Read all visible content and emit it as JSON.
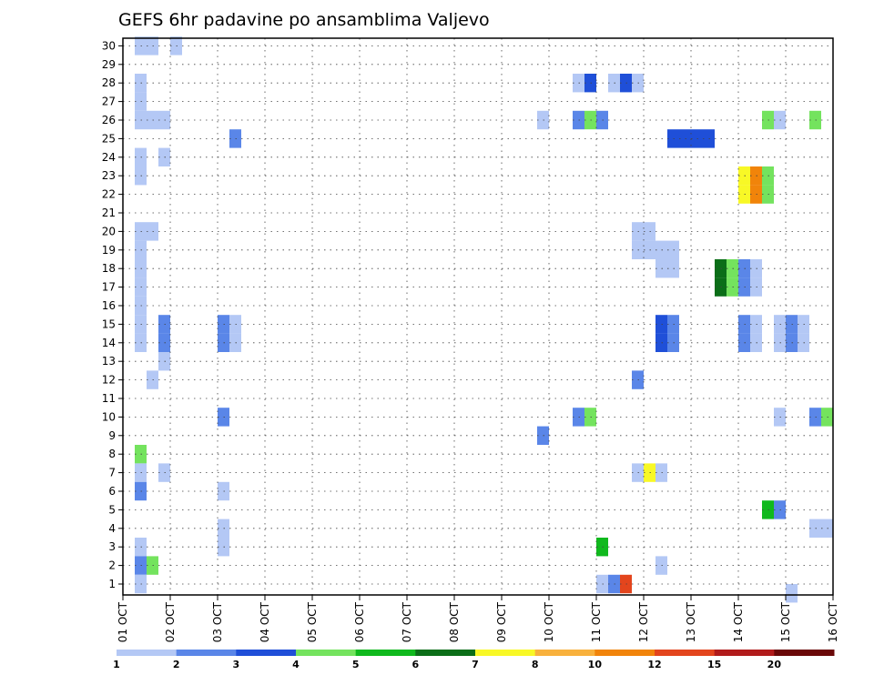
{
  "chart_data": {
    "type": "heatmap",
    "title": "GEFS 6hr padavine po ansamblima Valjevo",
    "xlabel": "",
    "ylabel": "",
    "x_tick_labels": [
      "01 OCT",
      "02 OCT",
      "03 OCT",
      "04 OCT",
      "05 OCT",
      "06 OCT",
      "07 OCT",
      "08 OCT",
      "09 OCT",
      "10 OCT",
      "11 OCT",
      "12 OCT",
      "13 OCT",
      "14 OCT",
      "15 OCT",
      "16 OCT"
    ],
    "y_tick_labels": [
      "1",
      "2",
      "3",
      "4",
      "5",
      "6",
      "7",
      "8",
      "9",
      "10",
      "11",
      "12",
      "13",
      "14",
      "15",
      "16",
      "17",
      "18",
      "19",
      "20",
      "21",
      "22",
      "23",
      "24",
      "25",
      "26",
      "27",
      "28",
      "29",
      "30"
    ],
    "x_range_days": [
      0,
      15
    ],
    "time_step_hours": 6,
    "grid": "dotted",
    "colorbar": {
      "labels": [
        "1",
        "2",
        "3",
        "4",
        "5",
        "6",
        "7",
        "8",
        "10",
        "12",
        "15",
        "20"
      ],
      "colors": [
        "#b4c8f5",
        "#5a86e8",
        "#1f4fd8",
        "#74e35e",
        "#10b91d",
        "#0b6e18",
        "#f8f826",
        "#f8b13d",
        "#f1840a",
        "#e3451d",
        "#b11b1b",
        "#6a0808"
      ]
    },
    "cells_legend": "each cell = [day offset from 01 OCT (6h steps), ensemble member, color class 1-12]",
    "cells": [
      [
        0.25,
        30,
        1
      ],
      [
        0.5,
        30,
        1
      ],
      [
        1.0,
        30,
        1
      ],
      [
        0.25,
        28,
        1
      ],
      [
        0.25,
        27,
        1
      ],
      [
        0.25,
        26,
        1
      ],
      [
        0.5,
        26,
        1
      ],
      [
        0.75,
        26,
        1
      ],
      [
        0.25,
        24,
        1
      ],
      [
        0.75,
        24,
        1
      ],
      [
        0.25,
        23,
        1
      ],
      [
        0.25,
        20,
        1
      ],
      [
        0.5,
        20,
        1
      ],
      [
        0.25,
        19,
        1
      ],
      [
        0.25,
        18,
        1
      ],
      [
        0.25,
        17,
        1
      ],
      [
        0.25,
        16,
        1
      ],
      [
        0.25,
        15,
        1
      ],
      [
        0.25,
        14,
        1
      ],
      [
        0.75,
        15,
        2
      ],
      [
        0.75,
        14,
        2
      ],
      [
        0.75,
        13,
        1
      ],
      [
        0.5,
        12,
        1
      ],
      [
        0.25,
        8,
        4
      ],
      [
        0.25,
        7,
        1
      ],
      [
        0.75,
        7,
        1
      ],
      [
        0.25,
        6,
        2
      ],
      [
        0.25,
        3,
        1
      ],
      [
        0.25,
        2,
        2
      ],
      [
        0.5,
        2,
        4
      ],
      [
        0.25,
        1,
        1
      ],
      [
        2.25,
        25,
        2
      ],
      [
        2.0,
        15,
        2
      ],
      [
        2.25,
        15,
        1
      ],
      [
        2.0,
        14,
        2
      ],
      [
        2.25,
        14,
        1
      ],
      [
        2.0,
        10,
        2
      ],
      [
        2.0,
        6,
        1
      ],
      [
        2.0,
        4,
        1
      ],
      [
        2.0,
        3,
        1
      ],
      [
        8.75,
        26,
        1
      ],
      [
        8.75,
        9,
        2
      ],
      [
        9.5,
        28,
        1
      ],
      [
        9.75,
        28,
        3
      ],
      [
        10.25,
        28,
        1
      ],
      [
        10.5,
        28,
        3
      ],
      [
        10.75,
        28,
        1
      ],
      [
        9.5,
        26,
        2
      ],
      [
        9.75,
        26,
        4
      ],
      [
        10.0,
        26,
        2
      ],
      [
        9.5,
        10,
        2
      ],
      [
        9.75,
        10,
        4
      ],
      [
        10.0,
        3,
        5
      ],
      [
        10.0,
        1,
        1
      ],
      [
        10.25,
        1,
        2
      ],
      [
        10.5,
        1,
        10
      ],
      [
        10.75,
        20,
        1
      ],
      [
        11.0,
        20,
        1
      ],
      [
        10.75,
        19,
        1
      ],
      [
        11.0,
        19,
        1
      ],
      [
        11.25,
        19,
        1
      ],
      [
        11.5,
        19,
        1
      ],
      [
        11.25,
        18,
        1
      ],
      [
        11.5,
        18,
        1
      ],
      [
        10.75,
        12,
        2
      ],
      [
        11.25,
        15,
        3
      ],
      [
        11.5,
        15,
        2
      ],
      [
        11.25,
        14,
        3
      ],
      [
        11.5,
        14,
        2
      ],
      [
        10.75,
        7,
        1
      ],
      [
        11.0,
        7,
        7
      ],
      [
        11.25,
        7,
        1
      ],
      [
        11.25,
        2,
        1
      ],
      [
        11.5,
        25,
        3
      ],
      [
        11.75,
        25,
        3
      ],
      [
        12.0,
        25,
        3
      ],
      [
        12.25,
        25,
        3
      ],
      [
        12.5,
        18,
        6
      ],
      [
        12.75,
        18,
        4
      ],
      [
        13.0,
        18,
        2
      ],
      [
        13.25,
        18,
        1
      ],
      [
        12.5,
        17,
        6
      ],
      [
        12.75,
        17,
        4
      ],
      [
        13.0,
        17,
        2
      ],
      [
        13.25,
        17,
        1
      ],
      [
        13.0,
        23,
        7
      ],
      [
        13.25,
        23,
        9
      ],
      [
        13.5,
        23,
        4
      ],
      [
        13.0,
        22,
        7
      ],
      [
        13.25,
        22,
        9
      ],
      [
        13.5,
        22,
        4
      ],
      [
        13.0,
        15,
        2
      ],
      [
        13.25,
        15,
        1
      ],
      [
        13.0,
        14,
        2
      ],
      [
        13.25,
        14,
        1
      ],
      [
        13.5,
        26,
        4
      ],
      [
        13.75,
        26,
        1
      ],
      [
        14.5,
        26,
        4
      ],
      [
        13.75,
        15,
        1
      ],
      [
        14.0,
        15,
        2
      ],
      [
        14.25,
        15,
        1
      ],
      [
        13.75,
        14,
        1
      ],
      [
        14.0,
        14,
        2
      ],
      [
        14.25,
        14,
        1
      ],
      [
        13.75,
        10,
        1
      ],
      [
        14.5,
        10,
        2
      ],
      [
        14.75,
        10,
        4
      ],
      [
        13.5,
        5,
        5
      ],
      [
        13.75,
        5,
        2
      ],
      [
        14.5,
        4,
        1
      ],
      [
        14.75,
        4,
        1
      ],
      [
        14.0,
        0.5,
        1
      ]
    ]
  }
}
